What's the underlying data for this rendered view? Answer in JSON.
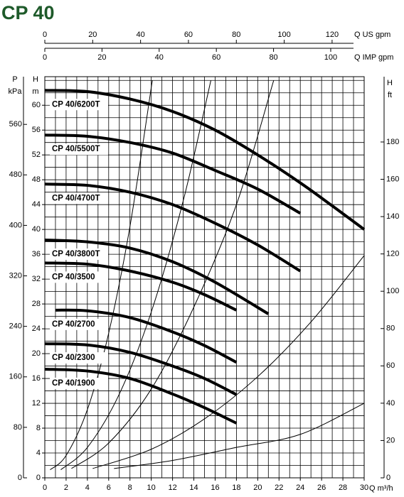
{
  "chart_data": {
    "type": "line",
    "title": "CP 40",
    "x_label": "Q m³/h",
    "y_label": [
      "H",
      "m"
    ],
    "xlim": [
      0,
      30
    ],
    "xticks": [
      0,
      2,
      4,
      6,
      8,
      10,
      12,
      14,
      16,
      18,
      20,
      22,
      24,
      26,
      28,
      30
    ],
    "x_grid": [
      0,
      1,
      2,
      3,
      4,
      5,
      6,
      7,
      8,
      9,
      10,
      11,
      12,
      13,
      14,
      15,
      16,
      17,
      18,
      19,
      20,
      21,
      22,
      23,
      24,
      25,
      26,
      27,
      28,
      29,
      30
    ],
    "ylim": [
      0,
      64.6
    ],
    "yticks": [
      0,
      4,
      8,
      12,
      16,
      20,
      24,
      28,
      32,
      36,
      40,
      44,
      48,
      52,
      56,
      60
    ],
    "y_grid": [
      0,
      2,
      4,
      6,
      8,
      10,
      12,
      14,
      16,
      18,
      20,
      22,
      24,
      26,
      28,
      30,
      32,
      34,
      36,
      38,
      40,
      42,
      44,
      46,
      48,
      50,
      52,
      54,
      56,
      58,
      60,
      62,
      64
    ],
    "grid": true,
    "us_gpm_axis": {
      "label": "Q US gpm",
      "lim": [
        0,
        133.4
      ],
      "ticks": [
        0,
        20,
        40,
        60,
        80,
        100,
        120
      ]
    },
    "imp_gpm_axis": {
      "label": "Q IMP gpm",
      "lim": [
        0,
        111.7
      ],
      "ticks": [
        0,
        20,
        40,
        60,
        80,
        100
      ]
    },
    "kpa_axis": {
      "label": [
        "P",
        "kPa"
      ],
      "lim": [
        0,
        635.6
      ],
      "ticks": [
        0,
        80,
        160,
        240,
        320,
        400,
        480,
        560
      ]
    },
    "ft_axis": {
      "label": [
        "H",
        "ft"
      ],
      "lim": [
        0,
        215
      ],
      "ticks": [
        0,
        20,
        40,
        60,
        80,
        100,
        120,
        140,
        160,
        180
      ]
    },
    "series": [
      {
        "name": "CP 40/6200T",
        "color": "#000000",
        "x": [
          0,
          4,
          8,
          12,
          16,
          20,
          24,
          27,
          30
        ],
        "values": [
          62.4,
          62.2,
          61,
          59,
          56,
          52,
          47.5,
          43.8,
          40
        ]
      },
      {
        "name": "CP 40/5500T",
        "color": "#000000",
        "x": [
          0,
          4,
          8,
          12,
          16,
          20,
          24
        ],
        "values": [
          55.2,
          55,
          54,
          52.3,
          49.5,
          46.5,
          42.6
        ]
      },
      {
        "name": "CP 40/4700T",
        "color": "#000000",
        "x": [
          0,
          4,
          8,
          12,
          16,
          20,
          24
        ],
        "values": [
          47.3,
          47.1,
          46,
          44,
          41,
          37.5,
          33.3
        ]
      },
      {
        "name": "CP 40/3800T",
        "color": "#000000",
        "x": [
          0,
          4,
          8,
          12,
          16,
          21
        ],
        "values": [
          38.3,
          38,
          37,
          34.8,
          31.5,
          26.4
        ]
      },
      {
        "name": "CP 40/3500",
        "color": "#000000",
        "x": [
          0,
          4,
          8,
          12,
          15,
          18
        ],
        "values": [
          34.6,
          34.4,
          33.3,
          31.5,
          29.5,
          27
        ]
      },
      {
        "name": "CP 40/2700",
        "color": "#000000",
        "x": [
          1,
          4,
          8,
          12,
          15,
          18
        ],
        "values": [
          27,
          26.9,
          25.8,
          23.5,
          21.3,
          18.6
        ]
      },
      {
        "name": "CP 40/2300",
        "color": "#000000",
        "x": [
          0,
          4,
          8,
          12,
          15,
          18
        ],
        "values": [
          21.6,
          21.4,
          20.2,
          18,
          16,
          13.4
        ]
      },
      {
        "name": "CP 40/1900",
        "color": "#000000",
        "x": [
          0,
          4,
          8,
          12,
          15,
          18
        ],
        "values": [
          17.5,
          17.2,
          16,
          13.5,
          11.3,
          8.8
        ]
      }
    ],
    "system_curves": [
      {
        "x": [
          0.5,
          2,
          4,
          6,
          8,
          10.1
        ],
        "values": [
          1.3,
          3.6,
          11.0,
          23.3,
          40.5,
          64.0
        ]
      },
      {
        "x": [
          1.5,
          4,
          7,
          10,
          13,
          15.6
        ],
        "values": [
          1.3,
          4.9,
          13.5,
          26.7,
          44.6,
          64.0
        ]
      },
      {
        "x": [
          2.5,
          6,
          10,
          14,
          18,
          21.5
        ],
        "values": [
          1.5,
          5.6,
          14.3,
          27.5,
          44.0,
          64.0
        ]
      },
      {
        "x": [
          4.5,
          10,
          15,
          20,
          25,
          30
        ],
        "values": [
          1.5,
          4.6,
          9.5,
          16.3,
          25.1,
          35.8
        ]
      },
      {
        "x": [
          6.5,
          12,
          18,
          24,
          30
        ],
        "values": [
          1.5,
          2.8,
          4.9,
          7.0,
          12.0
        ]
      }
    ]
  }
}
